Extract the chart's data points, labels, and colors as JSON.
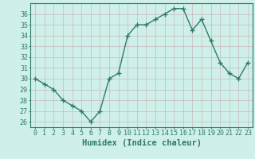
{
  "x": [
    0,
    1,
    2,
    3,
    4,
    5,
    6,
    7,
    8,
    9,
    10,
    11,
    12,
    13,
    14,
    15,
    16,
    17,
    18,
    19,
    20,
    21,
    22,
    23
  ],
  "y": [
    30.0,
    29.5,
    29.0,
    28.0,
    27.5,
    27.0,
    26.0,
    27.0,
    30.0,
    30.5,
    34.0,
    35.0,
    35.0,
    35.5,
    36.0,
    36.5,
    36.5,
    34.5,
    35.5,
    33.5,
    31.5,
    30.5,
    30.0,
    31.5
  ],
  "line_color": "#2d7a6a",
  "marker": "+",
  "marker_size": 4,
  "bg_color": "#cff0ea",
  "grid_color": "#c9b8b8",
  "xlabel": "Humidex (Indice chaleur)",
  "xlim": [
    -0.5,
    23.5
  ],
  "ylim": [
    25.5,
    37.0
  ],
  "yticks": [
    26,
    27,
    28,
    29,
    30,
    31,
    32,
    33,
    34,
    35,
    36
  ],
  "xticks": [
    0,
    1,
    2,
    3,
    4,
    5,
    6,
    7,
    8,
    9,
    10,
    11,
    12,
    13,
    14,
    15,
    16,
    17,
    18,
    19,
    20,
    21,
    22,
    23
  ],
  "tick_label_fontsize": 6.0,
  "xlabel_fontsize": 7.5,
  "line_width": 1.0
}
